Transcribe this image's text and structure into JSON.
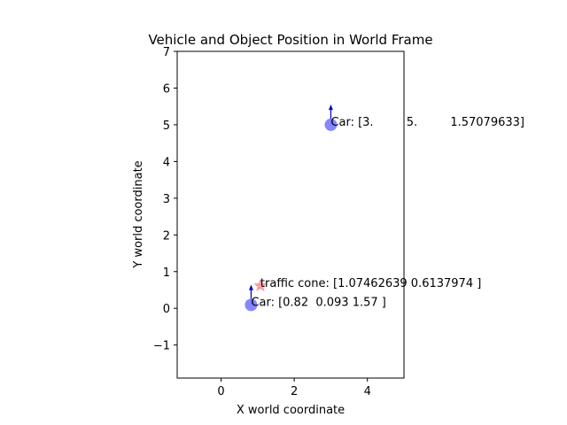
{
  "chart_data": {
    "type": "scatter",
    "title": "Vehicle and Object Position in World Frame",
    "xlabel": "X world coordinate",
    "ylabel": "Y world coordinate",
    "xlim": [
      -1.2,
      5
    ],
    "ylim": [
      -1.9,
      7
    ],
    "x_ticks": [
      0,
      2,
      4
    ],
    "y_ticks": [
      -1,
      0,
      1,
      2,
      3,
      4,
      5,
      6,
      7
    ],
    "grid": false,
    "series": [
      {
        "marker": "circle",
        "color": "#7f7fff",
        "points": [
          {
            "x": 0.82,
            "y": 0.093,
            "heading": 1.57,
            "label": "Car: [0.82  0.093 1.57 ]"
          },
          {
            "x": 3.0,
            "y": 5.0,
            "heading": 1.57079633,
            "label": "Car: [3.         5.         1.57079633]"
          }
        ]
      },
      {
        "marker": "star",
        "color": "#ff9090",
        "points": [
          {
            "x": 1.07462639,
            "y": 0.6137974,
            "label": "traffic cone: [1.07462639 0.6137974 ]"
          }
        ]
      }
    ],
    "arrow_color": "#0000cc"
  }
}
